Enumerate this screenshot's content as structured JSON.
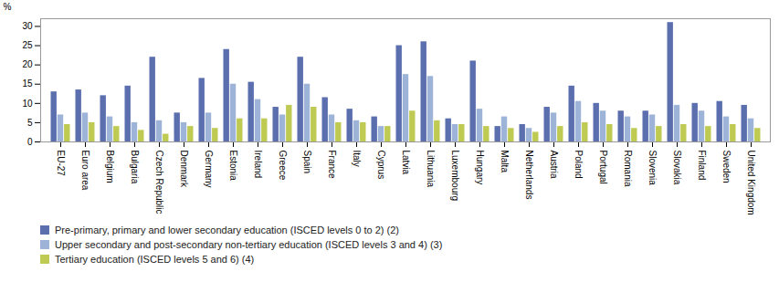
{
  "chart_data": {
    "type": "bar",
    "categories": [
      "EU-27",
      "Euro area",
      "Belgium",
      "Bulgaria",
      "Czech Republic",
      "Denmark",
      "Germany",
      "Estonia",
      "Ireland",
      "Greece",
      "Spain",
      "France",
      "Italy",
      "Cyprus",
      "Latvia",
      "Lithuania",
      "Luxembourg",
      "Hungary",
      "Malta",
      "Netherlands",
      "Austria",
      "Poland",
      "Portugal",
      "Romania",
      "Slovenia",
      "Slovakia",
      "Finland",
      "Sweden",
      "United Kingdom"
    ],
    "series": [
      {
        "name": "Pre-primary, primary and lower secondary education (ISCED levels 0 to 2) (2)",
        "color": "#5B6FAF",
        "values": [
          13.0,
          13.5,
          12.0,
          14.5,
          22.0,
          7.5,
          16.5,
          24.0,
          15.5,
          9.0,
          22.0,
          11.5,
          8.5,
          6.5,
          25.0,
          26.0,
          6.0,
          21.0,
          4.0,
          4.5,
          9.0,
          14.5,
          10.0,
          8.0,
          8.0,
          31.0,
          10.0,
          10.5,
          9.5
        ]
      },
      {
        "name": "Upper secondary and post-secondary non-tertiary education (ISCED levels 3 and 4) (3)",
        "color": "#9EB3D8",
        "values": [
          7.0,
          7.5,
          6.5,
          5.0,
          5.5,
          5.0,
          7.5,
          15.0,
          11.0,
          7.0,
          15.0,
          7.0,
          5.5,
          4.0,
          17.5,
          17.0,
          4.5,
          8.5,
          6.5,
          3.5,
          7.5,
          10.5,
          8.0,
          6.5,
          7.0,
          9.5,
          8.0,
          6.5,
          6.0
        ]
      },
      {
        "name": "Tertiary education (ISCED levels 5 and 6) (4)",
        "color": "#BFCA52",
        "values": [
          4.5,
          5.0,
          4.0,
          3.0,
          2.0,
          4.0,
          3.5,
          6.0,
          6.0,
          9.5,
          9.0,
          5.0,
          5.0,
          4.0,
          8.0,
          5.5,
          4.5,
          4.0,
          3.5,
          2.5,
          4.0,
          5.0,
          4.5,
          3.5,
          4.0,
          4.5,
          4.0,
          4.5,
          3.5
        ]
      }
    ],
    "ylabel": "%",
    "ylim": [
      0,
      32
    ],
    "yticks": [
      0,
      5,
      10,
      15,
      20,
      25,
      30
    ],
    "grid": false,
    "legend": "bottom"
  }
}
